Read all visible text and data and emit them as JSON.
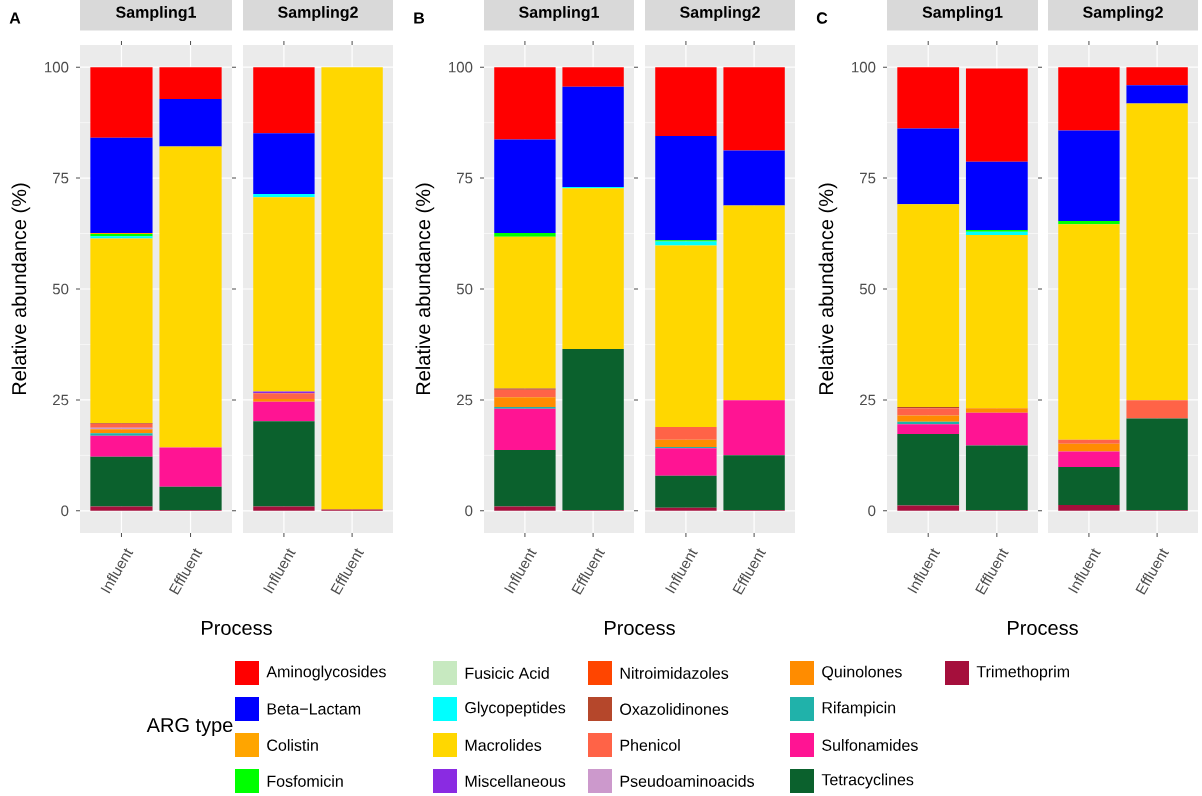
{
  "chart_data": [
    {
      "type": "bar",
      "stacked": true,
      "title": "Sampling1",
      "ylabel": "Relative abundance (%)",
      "xlabel": "Process",
      "annotations": [
        "A"
      ],
      "legend": "bottom",
      "legend_title": "ARG type",
      "grid": true,
      "categories": [
        "Influent",
        "Effluent"
      ],
      "ylim": [
        -5,
        105
      ],
      "yticks": [
        0,
        25,
        50,
        75,
        100
      ],
      "series": [
        {
          "name": "Trimethoprim",
          "color": "#a50f3c",
          "values": [
            1.0,
            0.2
          ]
        },
        {
          "name": "Tetracyclines",
          "color": "#0b612d",
          "values": [
            11.2,
            5.2
          ]
        },
        {
          "name": "Sulfonamides",
          "color": "#ff1493",
          "values": [
            4.7,
            8.9
          ]
        },
        {
          "name": "Rifampicin",
          "color": "#20b2aa",
          "values": [
            0.6,
            0
          ]
        },
        {
          "name": "Quinolones",
          "color": "#ff8c00",
          "values": [
            0.9,
            0
          ]
        },
        {
          "name": "Pseudoaminoacids",
          "color": "#cc99cc",
          "values": [
            0.3,
            0
          ]
        },
        {
          "name": "Phenicol",
          "color": "#ff6347",
          "values": [
            0.9,
            0
          ]
        },
        {
          "name": "Oxazolidinones",
          "color": "#b5472b",
          "values": [
            0.2,
            0
          ]
        },
        {
          "name": "Nitroimidazoles",
          "color": "#ff4500",
          "values": [
            0,
            0
          ]
        },
        {
          "name": "Miscellaneous",
          "color": "#8a2be2",
          "values": [
            0,
            0
          ]
        },
        {
          "name": "Macrolides",
          "color": "#ffd700",
          "values": [
            41.6,
            67.8
          ]
        },
        {
          "name": "Glycopeptides",
          "color": "#00ffff",
          "values": [
            0.5,
            0
          ]
        },
        {
          "name": "Fusicic Acid",
          "color": "#c7e9c0",
          "values": [
            0,
            0
          ]
        },
        {
          "name": "Fosfomicin",
          "color": "#00ff00",
          "values": [
            0.5,
            0
          ]
        },
        {
          "name": "Colistin",
          "color": "#ffa500",
          "values": [
            0.2,
            0
          ]
        },
        {
          "name": "Beta−Lactam",
          "color": "#0000ff",
          "values": [
            21.5,
            10.7
          ]
        },
        {
          "name": "Aminoglycosides",
          "color": "#ff0000",
          "values": [
            15.9,
            7.2
          ]
        }
      ]
    },
    {
      "type": "bar",
      "stacked": true,
      "title": "Sampling2",
      "grid": true,
      "tick_labels": "x",
      "categories": [
        "Influent",
        "Effluent"
      ],
      "ylim": [
        -5,
        105
      ],
      "yticks": [
        0,
        25,
        50,
        75,
        100
      ],
      "series": [
        {
          "color": "#a50f3c",
          "values": [
            1.0,
            0.3
          ]
        },
        {
          "color": "#0b612d",
          "values": [
            19.2,
            0
          ]
        },
        {
          "color": "#ff1493",
          "values": [
            4.4,
            0
          ]
        },
        {
          "color": "#20b2aa",
          "values": [
            0,
            0
          ]
        },
        {
          "color": "#ff8c00",
          "values": [
            0.6,
            0
          ]
        },
        {
          "color": "#cc99cc",
          "values": [
            0,
            0
          ]
        },
        {
          "color": "#ff6347",
          "values": [
            1.3,
            0
          ]
        },
        {
          "color": "#b5472b",
          "values": [
            0,
            0
          ]
        },
        {
          "color": "#ff4500",
          "values": [
            0,
            0
          ]
        },
        {
          "color": "#8a2be2",
          "values": [
            0.4,
            0
          ]
        },
        {
          "color": "#ffd700",
          "values": [
            43.8,
            99.7
          ]
        },
        {
          "color": "#00ffff",
          "values": [
            0.7,
            0
          ]
        },
        {
          "color": "#c7e9c0",
          "values": [
            0,
            0
          ]
        },
        {
          "color": "#00ff00",
          "values": [
            0,
            0
          ]
        },
        {
          "color": "#ffa500",
          "values": [
            0,
            0
          ]
        },
        {
          "color": "#0000ff",
          "values": [
            13.7,
            0
          ]
        },
        {
          "color": "#ff0000",
          "values": [
            14.9,
            0
          ]
        }
      ]
    },
    {
      "type": "bar",
      "stacked": true,
      "title": "Sampling1",
      "ylabel": "Relative abundance (%)",
      "xlabel": "Process",
      "annotations": [
        "B"
      ],
      "grid": true,
      "categories": [
        "Influent",
        "Effluent"
      ],
      "ylim": [
        -5,
        105
      ],
      "yticks": [
        0,
        25,
        50,
        75,
        100
      ],
      "series": [
        {
          "color": "#a50f3c",
          "values": [
            1.0,
            0.2
          ]
        },
        {
          "color": "#0b612d",
          "values": [
            12.7,
            36.3
          ]
        },
        {
          "color": "#ff1493",
          "values": [
            9.3,
            0
          ]
        },
        {
          "color": "#20b2aa",
          "values": [
            0.4,
            0
          ]
        },
        {
          "color": "#ff8c00",
          "values": [
            2.2,
            0
          ]
        },
        {
          "color": "#cc99cc",
          "values": [
            0,
            0
          ]
        },
        {
          "color": "#ff6347",
          "values": [
            1.7,
            0
          ]
        },
        {
          "color": "#b5472b",
          "values": [
            0.3,
            0
          ]
        },
        {
          "color": "#ff4500",
          "values": [
            0,
            0
          ]
        },
        {
          "color": "#8a2be2",
          "values": [
            0,
            0
          ]
        },
        {
          "color": "#ffd700",
          "values": [
            34.2,
            36.2
          ]
        },
        {
          "color": "#00ffff",
          "values": [
            0,
            0.3
          ]
        },
        {
          "color": "#c7e9c0",
          "values": [
            0,
            0
          ]
        },
        {
          "color": "#00ff00",
          "values": [
            0.8,
            0
          ]
        },
        {
          "color": "#ffa500",
          "values": [
            0,
            0
          ]
        },
        {
          "color": "#0000ff",
          "values": [
            21.1,
            22.6
          ]
        },
        {
          "color": "#ff0000",
          "values": [
            16.3,
            4.4
          ]
        }
      ]
    },
    {
      "type": "bar",
      "stacked": true,
      "title": "Sampling2",
      "grid": true,
      "tick_labels": "x",
      "categories": [
        "Influent",
        "Effluent"
      ],
      "ylim": [
        -5,
        105
      ],
      "yticks": [
        0,
        25,
        50,
        75,
        100
      ],
      "series": [
        {
          "color": "#a50f3c",
          "values": [
            0.7,
            0.2
          ]
        },
        {
          "color": "#0b612d",
          "values": [
            7.2,
            12.3
          ]
        },
        {
          "color": "#ff1493",
          "values": [
            6.2,
            12.4
          ]
        },
        {
          "color": "#20b2aa",
          "values": [
            0.3,
            0
          ]
        },
        {
          "color": "#ff8c00",
          "values": [
            1.6,
            0
          ]
        },
        {
          "color": "#cc99cc",
          "values": [
            0,
            0
          ]
        },
        {
          "color": "#ff6347",
          "values": [
            2.9,
            0
          ]
        },
        {
          "color": "#b5472b",
          "values": [
            0,
            0
          ]
        },
        {
          "color": "#ff4500",
          "values": [
            0,
            0
          ]
        },
        {
          "color": "#8a2be2",
          "values": [
            0,
            0
          ]
        },
        {
          "color": "#ffd700",
          "values": [
            40.9,
            43.9
          ]
        },
        {
          "color": "#00ffff",
          "values": [
            0.9,
            0
          ]
        },
        {
          "color": "#c7e9c0",
          "values": [
            0,
            0
          ]
        },
        {
          "color": "#00ff00",
          "values": [
            0.3,
            0
          ]
        },
        {
          "color": "#ffa500",
          "values": [
            0,
            0
          ]
        },
        {
          "color": "#0000ff",
          "values": [
            23.5,
            12.4
          ]
        },
        {
          "color": "#ff0000",
          "values": [
            15.5,
            18.8
          ]
        }
      ]
    },
    {
      "type": "bar",
      "stacked": true,
      "title": "Sampling1",
      "ylabel": "Relative abundance (%)",
      "xlabel": "Process",
      "annotations": [
        "C"
      ],
      "grid": true,
      "categories": [
        "Influent",
        "Effluent"
      ],
      "ylim": [
        -5,
        105
      ],
      "yticks": [
        0,
        25,
        50,
        75,
        100
      ],
      "series": [
        {
          "color": "#a50f3c",
          "values": [
            1.2,
            0.2
          ]
        },
        {
          "color": "#0b612d",
          "values": [
            16.1,
            14.5
          ]
        },
        {
          "color": "#ff1493",
          "values": [
            2.2,
            7.4
          ]
        },
        {
          "color": "#20b2aa",
          "values": [
            0.6,
            0
          ]
        },
        {
          "color": "#ff8c00",
          "values": [
            1.4,
            1.0
          ]
        },
        {
          "color": "#cc99cc",
          "values": [
            0,
            0
          ]
        },
        {
          "color": "#ff6347",
          "values": [
            1.6,
            0
          ]
        },
        {
          "color": "#b5472b",
          "values": [
            0.3,
            0
          ]
        },
        {
          "color": "#ff4500",
          "values": [
            0,
            0
          ]
        },
        {
          "color": "#8a2be2",
          "values": [
            0,
            0
          ]
        },
        {
          "color": "#ffd700",
          "values": [
            45.7,
            39.1
          ]
        },
        {
          "color": "#00ffff",
          "values": [
            0,
            0.7
          ]
        },
        {
          "color": "#c7e9c0",
          "values": [
            0,
            0
          ]
        },
        {
          "color": "#00ff00",
          "values": [
            0,
            0.4
          ]
        },
        {
          "color": "#ffa500",
          "values": [
            0,
            0
          ]
        },
        {
          "color": "#0000ff",
          "values": [
            17.1,
            15.4
          ]
        },
        {
          "color": "#ff0000",
          "values": [
            13.8,
            21.0
          ]
        }
      ]
    },
    {
      "type": "bar",
      "stacked": true,
      "title": "Sampling2",
      "grid": true,
      "tick_labels": "x",
      "categories": [
        "Influent",
        "Effluent"
      ],
      "ylim": [
        -5,
        105
      ],
      "yticks": [
        0,
        25,
        50,
        75,
        100
      ],
      "series": [
        {
          "color": "#a50f3c",
          "values": [
            1.3,
            0.2
          ]
        },
        {
          "color": "#0b612d",
          "values": [
            8.6,
            20.6
          ]
        },
        {
          "color": "#ff1493",
          "values": [
            3.5,
            0
          ]
        },
        {
          "color": "#20b2aa",
          "values": [
            0,
            0
          ]
        },
        {
          "color": "#ff8c00",
          "values": [
            1.7,
            0
          ]
        },
        {
          "color": "#cc99cc",
          "values": [
            0,
            0
          ]
        },
        {
          "color": "#ff6347",
          "values": [
            0.9,
            4.1
          ]
        },
        {
          "color": "#b5472b",
          "values": [
            0,
            0
          ]
        },
        {
          "color": "#ff4500",
          "values": [
            0,
            0
          ]
        },
        {
          "color": "#8a2be2",
          "values": [
            0,
            0
          ]
        },
        {
          "color": "#ffd700",
          "values": [
            48.6,
            66.9
          ]
        },
        {
          "color": "#00ffff",
          "values": [
            0,
            0
          ]
        },
        {
          "color": "#c7e9c0",
          "values": [
            0,
            0
          ]
        },
        {
          "color": "#00ff00",
          "values": [
            0.7,
            0
          ]
        },
        {
          "color": "#ffa500",
          "values": [
            0,
            0
          ]
        },
        {
          "color": "#0000ff",
          "values": [
            20.4,
            4.1
          ]
        },
        {
          "color": "#ff0000",
          "values": [
            14.3,
            4.1
          ]
        }
      ]
    }
  ]
}
